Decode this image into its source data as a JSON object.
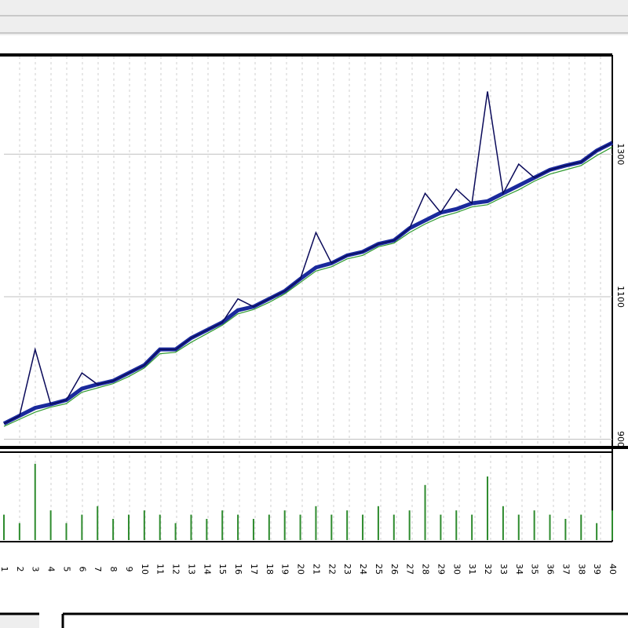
{
  "chart_data": [
    {
      "type": "line",
      "x": [
        1,
        2,
        3,
        4,
        5,
        6,
        7,
        8,
        9,
        10,
        11,
        12,
        13,
        14,
        15,
        16,
        17,
        18,
        19,
        20,
        21,
        22,
        23,
        24,
        25,
        26,
        27,
        28,
        29,
        30,
        31,
        32,
        33,
        34,
        35,
        36,
        37,
        38,
        39,
        40
      ],
      "xlim": [
        1,
        40
      ],
      "ylim": [
        894,
        1437
      ],
      "yticks": [
        900,
        1100,
        1300
      ],
      "grid": true,
      "series": [
        {
          "color": "#1a2a9c",
          "values": [
            922,
            933,
            944,
            949,
            955,
            971,
            977,
            982,
            993,
            1004,
            1026,
            1026,
            1042,
            1053,
            1064,
            1081,
            1086,
            1097,
            1108,
            1125,
            1141,
            1147,
            1158,
            1163,
            1174,
            1179,
            1196,
            1207,
            1218,
            1223,
            1231,
            1234,
            1245,
            1256,
            1267,
            1278,
            1284,
            1289,
            1305,
            1316
          ]
        },
        {
          "color": "#0a0a5a",
          "values": [
            922,
            933,
            1026,
            949,
            955,
            993,
            977,
            982,
            993,
            1004,
            1026,
            1026,
            1042,
            1053,
            1064,
            1097,
            1086,
            1097,
            1108,
            1125,
            1190,
            1147,
            1158,
            1163,
            1174,
            1179,
            1196,
            1245,
            1218,
            1251,
            1231,
            1388,
            1245,
            1286,
            1267,
            1278,
            1284,
            1289,
            1305,
            1316
          ]
        },
        {
          "color": "#2e9a2e",
          "values": [
            918,
            928,
            938,
            945,
            950,
            966,
            972,
            978,
            988,
            1000,
            1020,
            1022,
            1036,
            1048,
            1060,
            1076,
            1082,
            1092,
            1104,
            1120,
            1136,
            1142,
            1153,
            1158,
            1170,
            1175,
            1190,
            1202,
            1212,
            1218,
            1226,
            1229,
            1240,
            1250,
            1262,
            1272,
            1278,
            1284,
            1298,
            1310
          ]
        }
      ]
    },
    {
      "type": "bar",
      "x": [
        1,
        2,
        3,
        4,
        5,
        6,
        7,
        8,
        9,
        10,
        11,
        12,
        13,
        14,
        15,
        16,
        17,
        18,
        19,
        20,
        21,
        22,
        23,
        24,
        25,
        26,
        27,
        28,
        29,
        30,
        31,
        32,
        33,
        34,
        35,
        36,
        37,
        38,
        39,
        40
      ],
      "xlim": [
        1,
        40
      ],
      "ylim": [
        0,
        1
      ],
      "color": "#2e8b2e",
      "values": [
        0.3,
        0.2,
        0.9,
        0.35,
        0.2,
        0.3,
        0.4,
        0.25,
        0.3,
        0.35,
        0.3,
        0.2,
        0.3,
        0.25,
        0.35,
        0.3,
        0.25,
        0.3,
        0.35,
        0.3,
        0.4,
        0.3,
        0.35,
        0.3,
        0.4,
        0.3,
        0.35,
        0.65,
        0.3,
        0.35,
        0.3,
        0.75,
        0.4,
        0.3,
        0.35,
        0.3,
        0.25,
        0.3,
        0.2,
        0.35
      ]
    }
  ]
}
